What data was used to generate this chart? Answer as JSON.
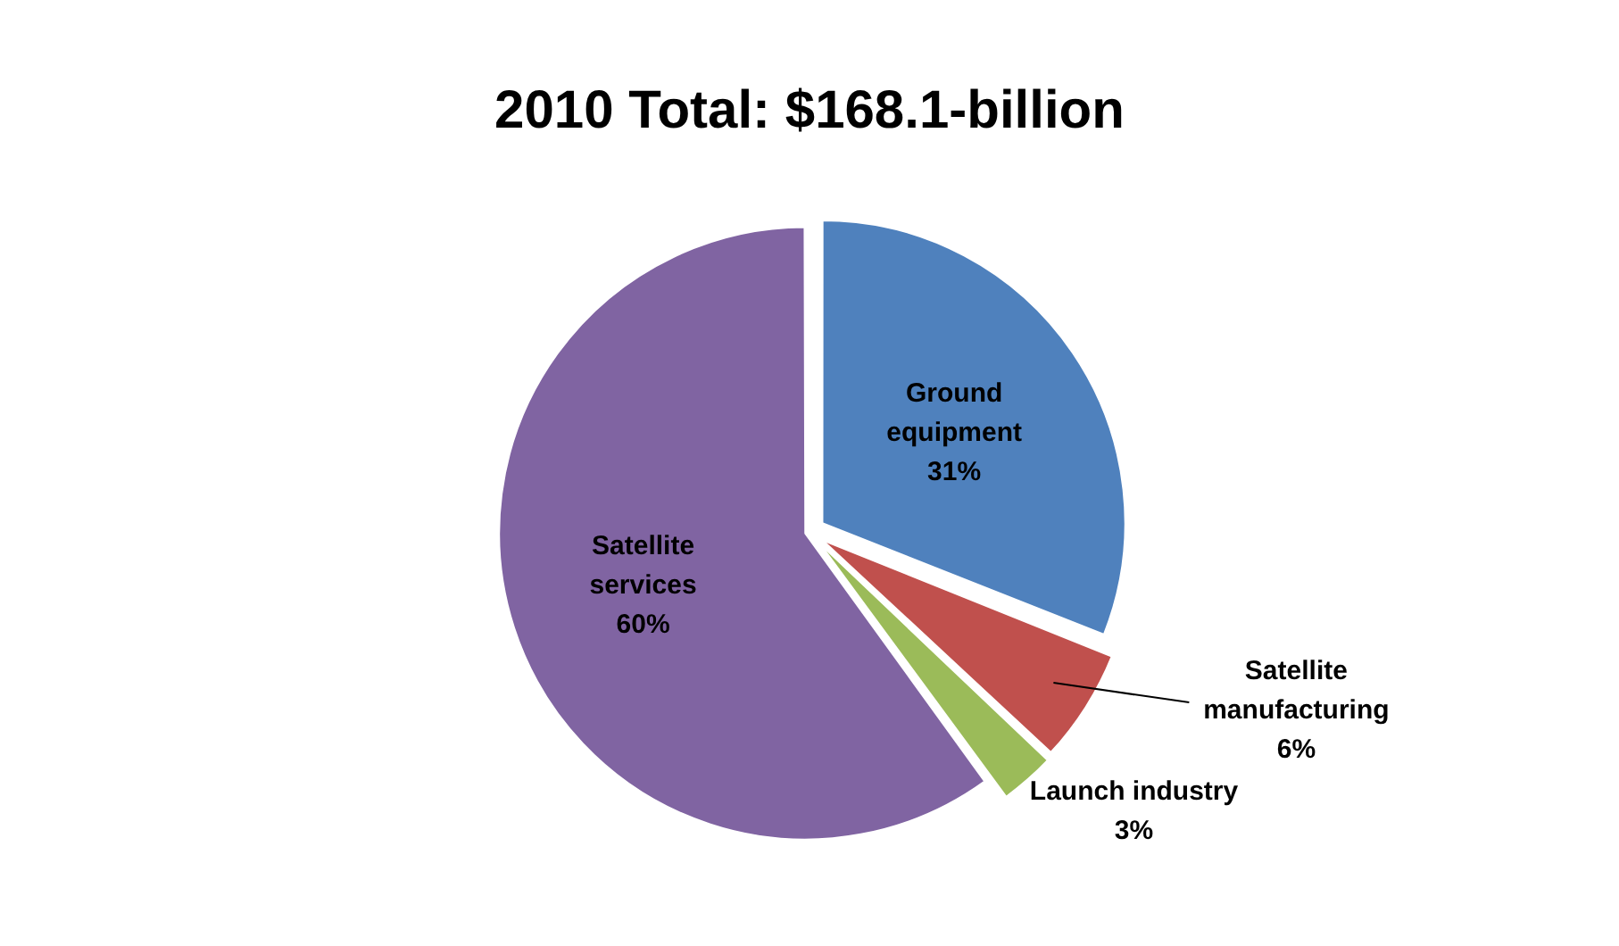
{
  "chart_data": {
    "type": "pie",
    "title": "2010 Total: $168.1-billion",
    "categories": [
      "Ground equipment",
      "Satellite manufacturing",
      "Launch industry",
      "Satellite services"
    ],
    "values": [
      31,
      6,
      3,
      60
    ],
    "value_labels": [
      "31%",
      "6%",
      "3%",
      "60%"
    ],
    "colors": [
      "#4f81bd",
      "#c0504d",
      "#9bbb59",
      "#8064a2"
    ],
    "legend": false
  }
}
